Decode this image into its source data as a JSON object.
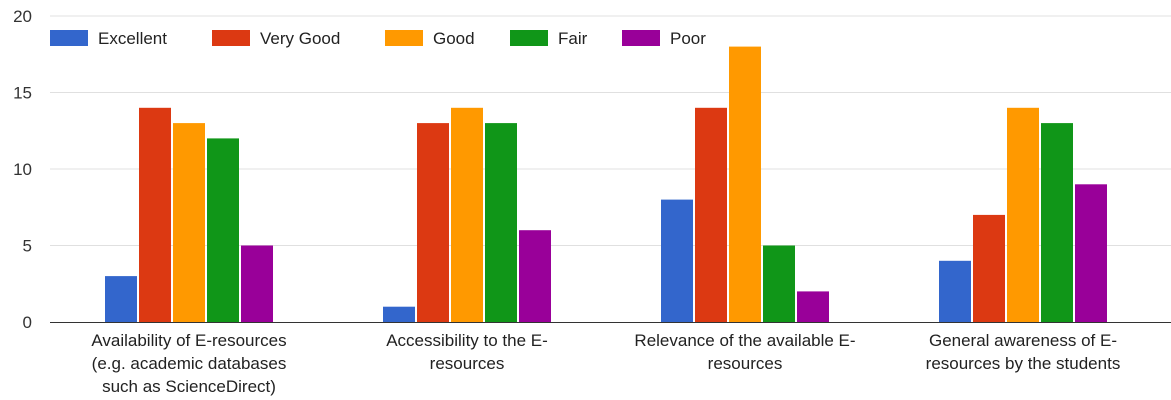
{
  "chart_data": {
    "type": "bar",
    "categories": [
      [
        "Availability of E-resources",
        "(e.g. academic databases",
        "such as ScienceDirect)"
      ],
      [
        "Accessibility to the E-",
        "resources"
      ],
      [
        "Relevance of the available E-",
        "resources"
      ],
      [
        "General awareness of E-",
        "resources by the students"
      ]
    ],
    "series": [
      {
        "name": "Excellent",
        "color": "#3366cc",
        "values": [
          3,
          1,
          8,
          4
        ]
      },
      {
        "name": "Very Good",
        "color": "#dc3912",
        "values": [
          14,
          13,
          14,
          7
        ]
      },
      {
        "name": "Good",
        "color": "#ff9900",
        "values": [
          13,
          14,
          18,
          14
        ]
      },
      {
        "name": "Fair",
        "color": "#109618",
        "values": [
          12,
          13,
          5,
          13
        ]
      },
      {
        "name": "Poor",
        "color": "#990099",
        "values": [
          5,
          6,
          2,
          9
        ]
      }
    ],
    "ylim": [
      0,
      20
    ],
    "yticks": [
      0,
      5,
      10,
      15,
      20
    ],
    "grid": true,
    "legend_position": "top-left"
  }
}
